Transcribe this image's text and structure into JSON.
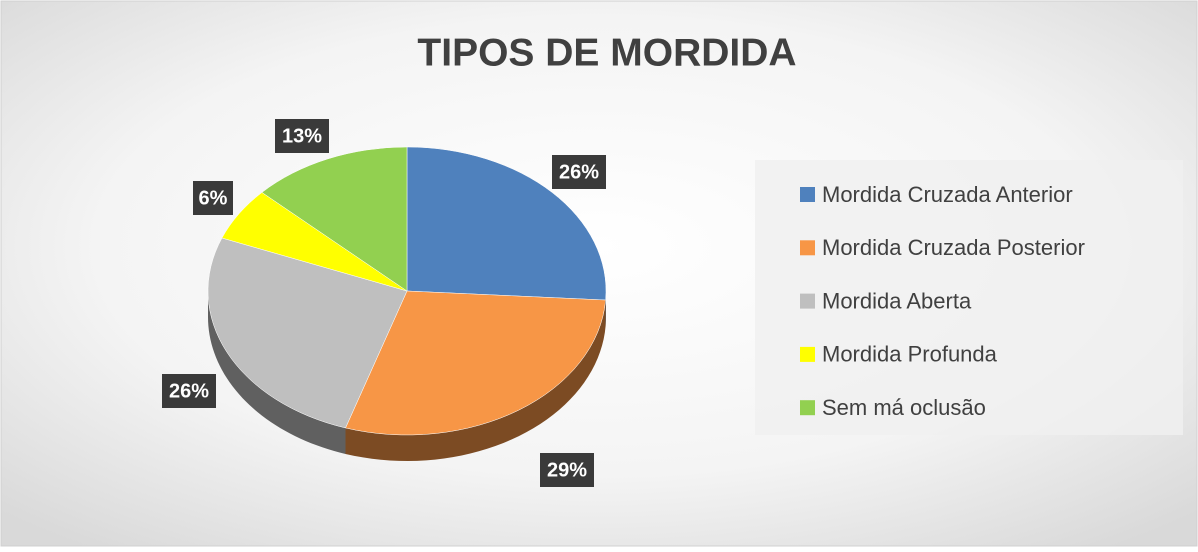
{
  "chart_data": {
    "type": "pie",
    "title": "TIPOS DE MORDIDA",
    "categories": [
      "Mordida Cruzada Anterior",
      "Mordida Cruzada Posterior",
      "Mordida Aberta",
      "Mordida Profunda",
      "Sem má oclusão"
    ],
    "values": [
      26,
      29,
      26,
      6,
      13
    ],
    "value_labels": [
      "26%",
      "29%",
      "26%",
      "6%",
      "13%"
    ],
    "colors": [
      "#4f81bd",
      "#f79646",
      "#bfbfbf",
      "#ffff00",
      "#92d050"
    ],
    "legend": "right"
  }
}
